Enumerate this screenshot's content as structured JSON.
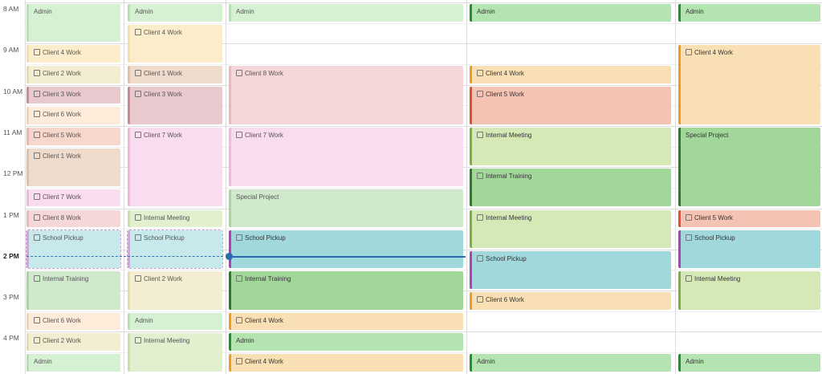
{
  "time_labels": [
    "8 AM",
    "9 AM",
    "10 AM",
    "11 AM",
    "12 PM",
    "1 PM",
    "2 PM",
    "3 PM",
    "4 PM"
  ],
  "columns": [
    {
      "events": [
        "Admin",
        "Client 4 Work",
        "Client 2 Work",
        "Client 3 Work",
        "Client 6 Work",
        "Client 5 Work",
        "Client 1 Work",
        "Client 7 Work",
        "Client 8 Work",
        "School Pickup",
        "Internal Training",
        "Client 6 Work",
        "Client 2 Work",
        "Admin"
      ]
    },
    {
      "events": [
        "Admin",
        "Client 4 Work",
        "Client 1 Work",
        "Client 3 Work",
        "Client 7 Work",
        "Internal Meeting",
        "School Pickup",
        "Client 2 Work",
        "Admin",
        "Internal Meeting"
      ]
    },
    {
      "events": [
        "Admin",
        "Client 8 Work",
        "Client 7 Work",
        "Special Project",
        "School Pickup",
        "Internal Training",
        "Client 4 Work",
        "Admin",
        "Client 4 Work"
      ]
    },
    {
      "events": [
        "Admin",
        "Client 4 Work",
        "Client 5 Work",
        "Internal Meeting",
        "Internal Training",
        "Internal Meeting",
        "School Pickup",
        "Client 6 Work",
        "Admin"
      ]
    },
    {
      "events": [
        "Admin",
        "Client 4 Work",
        "Special Project",
        "Client 5 Work",
        "School Pickup",
        "Internal Meeting",
        "Admin"
      ]
    }
  ]
}
